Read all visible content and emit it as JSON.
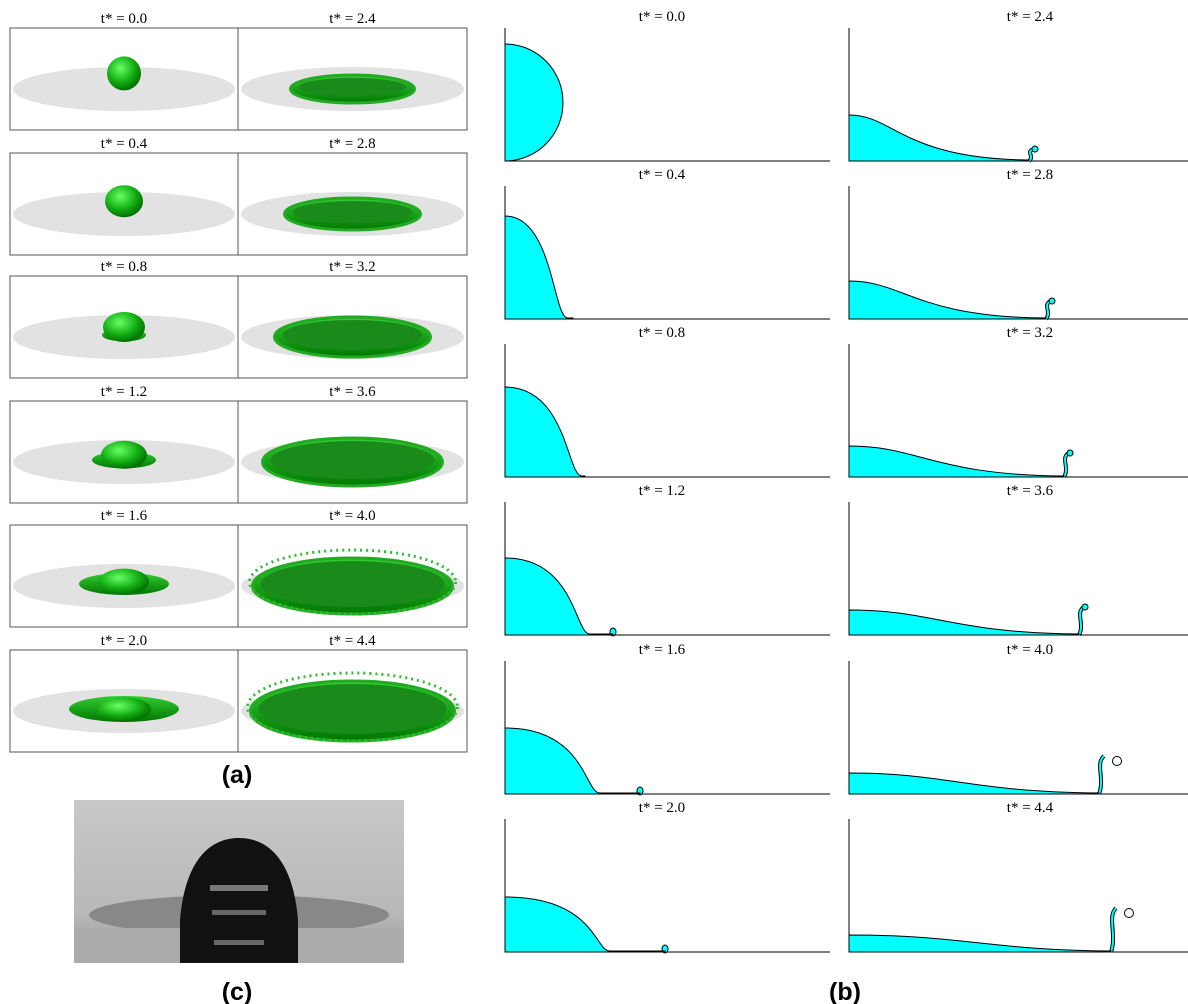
{
  "panel_a": {
    "label": "(a)",
    "frames": [
      "t* = 0.0",
      "t* = 0.4",
      "t* = 0.8",
      "t* = 1.2",
      "t* = 1.6",
      "t* = 2.0",
      "t* = 2.4",
      "t* = 2.8",
      "t* = 3.2",
      "t* = 3.6",
      "t* = 4.0",
      "t* = 4.4"
    ]
  },
  "panel_b": {
    "label": "(b)",
    "frames": [
      "t* = 0.0",
      "t* = 0.4",
      "t* = 0.8",
      "t* = 1.2",
      "t* = 1.6",
      "t* = 2.0",
      "t* = 2.4",
      "t* = 2.8",
      "t* = 3.2",
      "t* = 3.6",
      "t* = 4.0",
      "t* = 4.4"
    ]
  },
  "panel_c": {
    "label": "(c)"
  }
}
